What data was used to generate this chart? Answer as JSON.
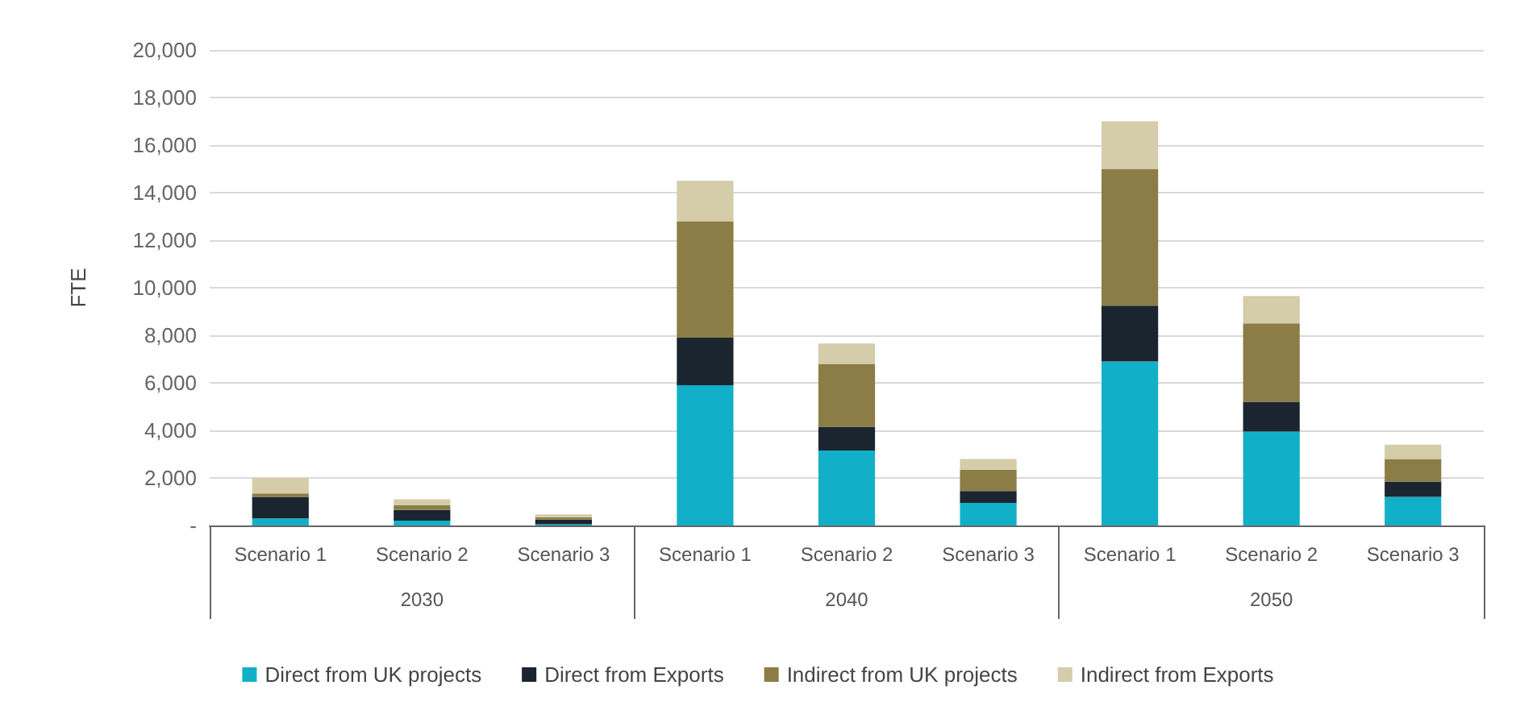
{
  "chart_data": {
    "type": "bar",
    "stacked": true,
    "ylabel": "FTE",
    "categories": [
      "Scenario 1",
      "Scenario 2",
      "Scenario 3",
      "Scenario 1",
      "Scenario 2",
      "Scenario 3",
      "Scenario 1",
      "Scenario 2",
      "Scenario 3"
    ],
    "annotations": [
      "2030",
      "2040",
      "2050"
    ],
    "series": [
      {
        "name": "Direct from UK projects",
        "color": "#12b0c8",
        "values": [
          300,
          200,
          50,
          5900,
          3150,
          950,
          6900,
          3950,
          1200
        ]
      },
      {
        "name": "Direct from Exports",
        "color": "#1a2530",
        "values": [
          900,
          450,
          200,
          2000,
          1000,
          500,
          2350,
          1250,
          650
        ]
      },
      {
        "name": "Indirect from UK projects",
        "color": "#8b7d45",
        "values": [
          150,
          200,
          100,
          4900,
          2650,
          900,
          5750,
          3300,
          950
        ]
      },
      {
        "name": "Indirect from Exports",
        "color": "#d5ccaa",
        "values": [
          650,
          250,
          120,
          1700,
          850,
          450,
          2000,
          1150,
          600
        ]
      }
    ],
    "ylim": [
      0,
      20000
    ],
    "yticks": [
      {
        "value": 0,
        "label": "-"
      },
      {
        "value": 2000,
        "label": "2,000"
      },
      {
        "value": 4000,
        "label": "4,000"
      },
      {
        "value": 6000,
        "label": "6,000"
      },
      {
        "value": 8000,
        "label": "8,000"
      },
      {
        "value": 10000,
        "label": "10,000"
      },
      {
        "value": 12000,
        "label": "12,000"
      },
      {
        "value": 14000,
        "label": "14,000"
      },
      {
        "value": 16000,
        "label": "16,000"
      },
      {
        "value": 18000,
        "label": "18,000"
      },
      {
        "value": 20000,
        "label": "20,000"
      }
    ],
    "grid": "y",
    "legend": "bottom"
  }
}
